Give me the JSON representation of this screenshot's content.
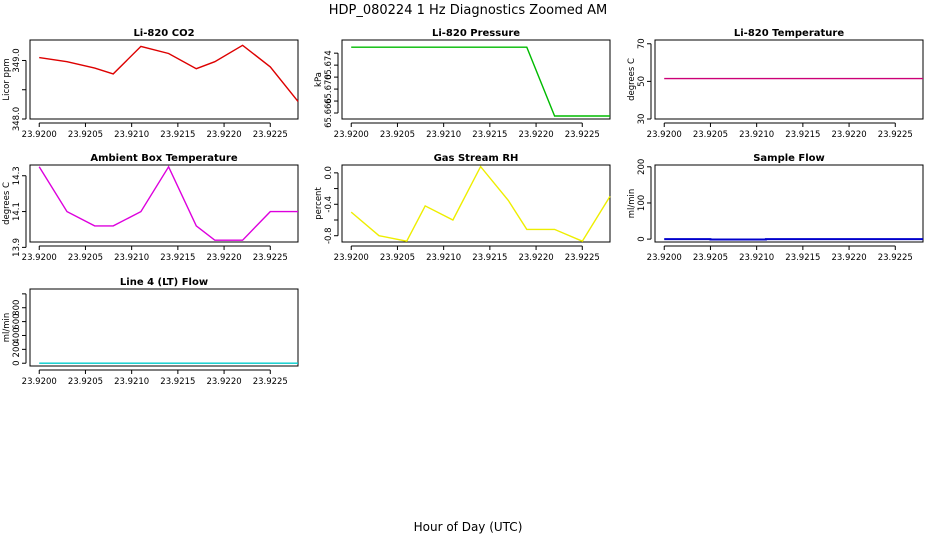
{
  "page": {
    "title": "HDP_080224  1 Hz Diagnostics Zoomed AM",
    "xlabel": "Hour of Day (UTC)"
  },
  "chart_data": [
    {
      "type": "line",
      "title": "Li-820 CO2",
      "ylabel": "Licor ppm",
      "color": "#dd0000",
      "x": [
        23.92,
        23.9203,
        23.9206,
        23.9208,
        23.9211,
        23.9214,
        23.9217,
        23.9219,
        23.9222,
        23.9225,
        23.9228
      ],
      "series": [
        {
          "values": [
            349.05,
            348.98,
            348.87,
            348.77,
            349.24,
            349.12,
            348.86,
            348.98,
            349.26,
            348.89,
            348.3
          ]
        }
      ],
      "xlim": [
        23.9199,
        23.9228
      ],
      "ylim": [
        348.0,
        349.35
      ],
      "xticks": [
        "23.9200",
        "23.9205",
        "23.9210",
        "23.9215",
        "23.9220",
        "23.9225"
      ],
      "yticks": [
        "348.0",
        "348.5",
        "349.0"
      ],
      "ytick_values": [
        348.0,
        348.5,
        349.0
      ],
      "ytick_labels_shown": [
        true,
        false,
        true
      ]
    },
    {
      "type": "line",
      "title": "Li-820 Pressure",
      "ylabel": "kPa",
      "color": "#00bb00",
      "x": [
        23.92,
        23.9203,
        23.9206,
        23.9208,
        23.9211,
        23.9214,
        23.9217,
        23.9219,
        23.9222,
        23.9225,
        23.9228
      ],
      "series": [
        {
          "values": [
            65.677,
            65.677,
            65.677,
            65.677,
            65.677,
            65.677,
            65.677,
            65.677,
            65.6655,
            65.6655,
            65.6655
          ]
        }
      ],
      "xlim": [
        23.9199,
        23.9228
      ],
      "ylim": [
        65.665,
        65.6782
      ],
      "xticks": [
        "23.9200",
        "23.9205",
        "23.9210",
        "23.9215",
        "23.9220",
        "23.9225"
      ],
      "yticks": [
        "65.666",
        "65.668",
        "65.670",
        "65.672",
        "65.674",
        "65.676"
      ],
      "ytick_values": [
        65.666,
        65.668,
        65.67,
        65.672,
        65.674,
        65.676
      ],
      "ytick_labels_shown": [
        true,
        false,
        true,
        false,
        true,
        false
      ]
    },
    {
      "type": "line",
      "title": "Li-820 Temperature",
      "ylabel": "degrees C",
      "color": "#cc0077",
      "x": [
        23.92,
        23.9228
      ],
      "series": [
        {
          "values": [
            51.5,
            51.5
          ]
        }
      ],
      "xlim": [
        23.9199,
        23.9228
      ],
      "ylim": [
        30,
        72
      ],
      "xticks": [
        "23.9200",
        "23.9205",
        "23.9210",
        "23.9215",
        "23.9220",
        "23.9225"
      ],
      "yticks": [
        "30",
        "50",
        "70"
      ],
      "ytick_values": [
        30,
        50,
        70
      ],
      "ytick_labels_shown": [
        true,
        true,
        true
      ]
    },
    {
      "type": "line",
      "title": "Ambient Box Temperature",
      "ylabel": "degrees C",
      "color": "#dd00dd",
      "x": [
        23.92,
        23.9203,
        23.9206,
        23.9208,
        23.9211,
        23.9214,
        23.9217,
        23.9219,
        23.9222,
        23.9225,
        23.9228
      ],
      "series": [
        {
          "values": [
            14.35,
            14.1,
            14.02,
            14.02,
            14.1,
            14.35,
            14.02,
            13.94,
            13.94,
            14.1,
            14.1
          ]
        }
      ],
      "xlim": [
        23.9199,
        23.9228
      ],
      "ylim": [
        13.93,
        14.36
      ],
      "xticks": [
        "23.9200",
        "23.9205",
        "23.9210",
        "23.9215",
        "23.9220",
        "23.9225"
      ],
      "yticks": [
        "13.9",
        "14.1",
        "14.3"
      ],
      "ytick_values": [
        13.9,
        14.1,
        14.3
      ],
      "ytick_labels_shown": [
        true,
        true,
        true
      ]
    },
    {
      "type": "line",
      "title": "Gas Stream RH",
      "ylabel": "percent",
      "color": "#eeee00",
      "x": [
        23.92,
        23.9203,
        23.9206,
        23.9208,
        23.9211,
        23.9214,
        23.9217,
        23.9219,
        23.9222,
        23.9225,
        23.9228
      ],
      "series": [
        {
          "values": [
            -0.5,
            -0.8,
            -0.87,
            -0.42,
            -0.6,
            0.08,
            -0.35,
            -0.72,
            -0.72,
            -0.87,
            -0.3
          ]
        }
      ],
      "xlim": [
        23.9199,
        23.9228
      ],
      "ylim": [
        -0.88,
        0.1
      ],
      "xticks": [
        "23.9200",
        "23.9205",
        "23.9210",
        "23.9215",
        "23.9220",
        "23.9225"
      ],
      "yticks": [
        "-0.8",
        "-0.6",
        "-0.4",
        "-0.2",
        "0.0"
      ],
      "ytick_values": [
        -0.8,
        -0.6,
        -0.4,
        -0.2,
        0.0
      ],
      "ytick_labels_shown": [
        true,
        false,
        true,
        false,
        true
      ]
    },
    {
      "type": "line",
      "title": "Sample Flow",
      "ylabel": "ml/min",
      "color": "#0000cc",
      "x": [
        23.92,
        23.9205,
        23.9205,
        23.9211,
        23.9211,
        23.9228
      ],
      "series": [
        {
          "values": [
            0,
            0,
            -1,
            -1,
            0,
            0
          ]
        }
      ],
      "xlim": [
        23.9199,
        23.9228
      ],
      "ylim": [
        -8,
        205
      ],
      "xticks": [
        "23.9200",
        "23.9205",
        "23.9210",
        "23.9215",
        "23.9220",
        "23.9225"
      ],
      "yticks": [
        "0",
        "100",
        "200"
      ],
      "ytick_values": [
        0,
        100,
        200
      ],
      "ytick_labels_shown": [
        true,
        true,
        true
      ]
    },
    {
      "type": "line",
      "title": "Line 4 (LT) Flow",
      "ylabel": "ml/min",
      "color": "#00cccc",
      "x": [
        23.92,
        23.9228
      ],
      "series": [
        {
          "values": [
            0,
            0
          ]
        }
      ],
      "xlim": [
        23.9199,
        23.9228
      ],
      "ylim": [
        -40,
        1070
      ],
      "xticks": [
        "23.9200",
        "23.9205",
        "23.9210",
        "23.9215",
        "23.9220",
        "23.9225"
      ],
      "yticks": [
        "0",
        "200",
        "400",
        "600",
        "800",
        "1000"
      ],
      "ytick_values": [
        0,
        200,
        400,
        600,
        800,
        1000
      ],
      "ytick_labels_shown": [
        true,
        true,
        true,
        true,
        true,
        false
      ]
    }
  ]
}
